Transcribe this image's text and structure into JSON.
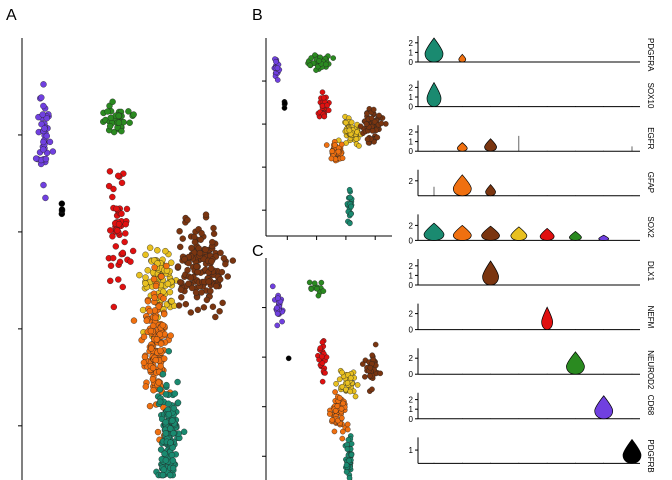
{
  "panel_letters": {
    "a": "A",
    "b": "B",
    "c": "C"
  },
  "colors": {
    "teal": "#1a8a70",
    "orange": "#f07010",
    "brown": "#7a3510",
    "yellow": "#e8c020",
    "red": "#e01010",
    "green": "#2a8a20",
    "purple": "#7040e0",
    "black": "#000000"
  },
  "chart_data": [
    {
      "id": "A",
      "type": "scatter",
      "title": "",
      "xlabel": "",
      "ylabel": "",
      "note": "2D embedding of cells colored by cluster; axis tick labels not shown",
      "clusters": [
        {
          "color": "purple",
          "n": 45,
          "center": [
            0.1,
            0.78
          ],
          "spread": [
            0.025,
            0.1
          ]
        },
        {
          "color": "black",
          "n": 4,
          "center": [
            0.18,
            0.62
          ],
          "spread": [
            0.004,
            0.02
          ]
        },
        {
          "color": "green",
          "n": 40,
          "center": [
            0.42,
            0.82
          ],
          "spread": [
            0.06,
            0.03
          ]
        },
        {
          "color": "red",
          "n": 55,
          "center": [
            0.44,
            0.58
          ],
          "spread": [
            0.04,
            0.12
          ]
        },
        {
          "color": "yellow",
          "n": 90,
          "center": [
            0.62,
            0.45
          ],
          "spread": [
            0.07,
            0.07
          ]
        },
        {
          "color": "brown",
          "n": 150,
          "center": [
            0.8,
            0.48
          ],
          "spread": [
            0.1,
            0.09
          ]
        },
        {
          "color": "orange",
          "n": 160,
          "center": [
            0.6,
            0.32
          ],
          "spread": [
            0.05,
            0.12
          ]
        },
        {
          "color": "teal",
          "n": 140,
          "center": [
            0.66,
            0.12
          ],
          "spread": [
            0.04,
            0.11
          ]
        }
      ]
    },
    {
      "id": "B",
      "type": "scatter",
      "clusters": [
        {
          "color": "purple",
          "n": 20,
          "center": [
            0.08,
            0.84
          ],
          "spread": [
            0.02,
            0.05
          ]
        },
        {
          "color": "black",
          "n": 4,
          "center": [
            0.15,
            0.66
          ],
          "spread": [
            0.005,
            0.02
          ]
        },
        {
          "color": "green",
          "n": 35,
          "center": [
            0.42,
            0.88
          ],
          "spread": [
            0.07,
            0.04
          ]
        },
        {
          "color": "red",
          "n": 30,
          "center": [
            0.46,
            0.65
          ],
          "spread": [
            0.03,
            0.07
          ]
        },
        {
          "color": "yellow",
          "n": 55,
          "center": [
            0.68,
            0.52
          ],
          "spread": [
            0.07,
            0.06
          ]
        },
        {
          "color": "brown",
          "n": 60,
          "center": [
            0.84,
            0.56
          ],
          "spread": [
            0.07,
            0.09
          ]
        },
        {
          "color": "orange",
          "n": 45,
          "center": [
            0.56,
            0.42
          ],
          "spread": [
            0.05,
            0.05
          ]
        },
        {
          "color": "teal",
          "n": 22,
          "center": [
            0.66,
            0.15
          ],
          "spread": [
            0.02,
            0.08
          ]
        }
      ]
    },
    {
      "id": "C",
      "type": "scatter",
      "clusters": [
        {
          "color": "purple",
          "n": 25,
          "center": [
            0.1,
            0.8
          ],
          "spread": [
            0.03,
            0.06
          ]
        },
        {
          "color": "black",
          "n": 1,
          "center": [
            0.18,
            0.56
          ],
          "spread": [
            0.0,
            0.0
          ]
        },
        {
          "color": "green",
          "n": 12,
          "center": [
            0.4,
            0.86
          ],
          "spread": [
            0.06,
            0.03
          ]
        },
        {
          "color": "red",
          "n": 25,
          "center": [
            0.46,
            0.56
          ],
          "spread": [
            0.04,
            0.07
          ]
        },
        {
          "color": "yellow",
          "n": 35,
          "center": [
            0.66,
            0.45
          ],
          "spread": [
            0.07,
            0.05
          ]
        },
        {
          "color": "brown",
          "n": 35,
          "center": [
            0.84,
            0.5
          ],
          "spread": [
            0.06,
            0.07
          ]
        },
        {
          "color": "orange",
          "n": 60,
          "center": [
            0.58,
            0.32
          ],
          "spread": [
            0.06,
            0.07
          ]
        },
        {
          "color": "teal",
          "n": 45,
          "center": [
            0.66,
            0.12
          ],
          "spread": [
            0.025,
            0.08
          ]
        }
      ]
    },
    {
      "id": "violin",
      "type": "violin",
      "groups": [
        "teal",
        "orange",
        "brown",
        "yellow",
        "red",
        "green",
        "purple",
        "black"
      ],
      "genes": [
        {
          "name": "PDGFRA",
          "ymax": 2.5,
          "ticks": [
            "0",
            "1",
            "2"
          ],
          "ytick_values": [
            0,
            1,
            2
          ],
          "violins": [
            2.5,
            0.8,
            0.05,
            0.05,
            0.05,
            0.05,
            0.05,
            0.05
          ],
          "widths": [
            0.9,
            0.35,
            0.1,
            0.1,
            0.05,
            0.05,
            0.05,
            0.05
          ]
        },
        {
          "name": "SOX10",
          "ymax": 2.5,
          "ticks": [
            "0",
            "1",
            "2"
          ],
          "ytick_values": [
            0,
            1,
            2
          ],
          "violins": [
            2.5,
            0.05,
            0.05,
            0.05,
            0.05,
            0.05,
            0.05,
            0.05
          ],
          "widths": [
            0.7,
            0.05,
            0.05,
            0.05,
            0.05,
            0.05,
            0.05,
            0.05
          ]
        },
        {
          "name": "EGFR",
          "ymax": 2.5,
          "ticks": [
            "0",
            "1",
            "2"
          ],
          "ytick_values": [
            0,
            1,
            2
          ],
          "violins": [
            0.05,
            0.9,
            1.3,
            1.6,
            0.05,
            0.05,
            0.05,
            0.5
          ],
          "widths": [
            0.05,
            0.5,
            0.6,
            0.1,
            0.05,
            0.05,
            0.05,
            0.1
          ]
        },
        {
          "name": "GFAP",
          "ymax": 3.2,
          "ticks": [
            "2"
          ],
          "ytick_values": [
            2
          ],
          "violins": [
            1.2,
            2.8,
            1.5,
            0.05,
            0.05,
            0.05,
            0.05,
            0.05
          ],
          "widths": [
            0.1,
            0.9,
            0.5,
            0.05,
            0.05,
            0.05,
            0.05,
            0.05
          ]
        },
        {
          "name": "SOX2",
          "ymax": 3.2,
          "ticks": [
            "2",
            "0"
          ],
          "ytick_values": [
            2,
            0
          ],
          "violins": [
            2.3,
            2.0,
            1.9,
            1.8,
            1.6,
            1.2,
            0.7,
            0.05
          ],
          "widths": [
            1.0,
            0.9,
            0.9,
            0.8,
            0.7,
            0.6,
            0.5,
            0.1
          ]
        },
        {
          "name": "DLX1",
          "ymax": 2.5,
          "ticks": [
            "0",
            "1",
            "2"
          ],
          "ytick_values": [
            0,
            1,
            2
          ],
          "violins": [
            0.05,
            0.05,
            2.5,
            0.05,
            0.05,
            0.05,
            0.05,
            0.05
          ],
          "widths": [
            0.05,
            0.05,
            0.8,
            0.1,
            0.05,
            0.05,
            0.05,
            0.05
          ]
        },
        {
          "name": "NEFM",
          "ymax": 3.0,
          "ticks": [
            "0",
            "2"
          ],
          "ytick_values": [
            0,
            2
          ],
          "violins": [
            0.05,
            0.05,
            0.05,
            0.05,
            2.8,
            0.05,
            0.05,
            0.05
          ],
          "widths": [
            0.05,
            0.05,
            0.05,
            0.05,
            0.55,
            0.05,
            0.05,
            0.05
          ]
        },
        {
          "name": "NEUROD2",
          "ymax": 3.0,
          "ticks": [
            "0",
            "2"
          ],
          "ytick_values": [
            0,
            2
          ],
          "violins": [
            0.05,
            0.05,
            0.05,
            0.05,
            0.05,
            2.8,
            0.05,
            0.05
          ],
          "widths": [
            0.05,
            0.05,
            0.05,
            0.05,
            0.05,
            0.9,
            0.05,
            0.05
          ]
        },
        {
          "name": "CD68",
          "ymax": 2.5,
          "ticks": [
            "0",
            "1",
            "2"
          ],
          "ytick_values": [
            0,
            1,
            2
          ],
          "violins": [
            0.05,
            0.05,
            0.05,
            0.05,
            0.05,
            0.05,
            2.4,
            0.05
          ],
          "widths": [
            0.05,
            0.05,
            0.05,
            0.05,
            0.05,
            0.05,
            0.9,
            0.05
          ]
        },
        {
          "name": "PDGFRB",
          "ymax": 1.8,
          "ticks": [
            "1"
          ],
          "ytick_values": [
            1
          ],
          "violins": [
            0.05,
            0.05,
            0.05,
            0.05,
            0.05,
            0.05,
            0.05,
            1.8
          ],
          "widths": [
            0.05,
            0.05,
            0.05,
            0.05,
            0.05,
            0.05,
            0.05,
            0.9
          ]
        }
      ]
    }
  ]
}
